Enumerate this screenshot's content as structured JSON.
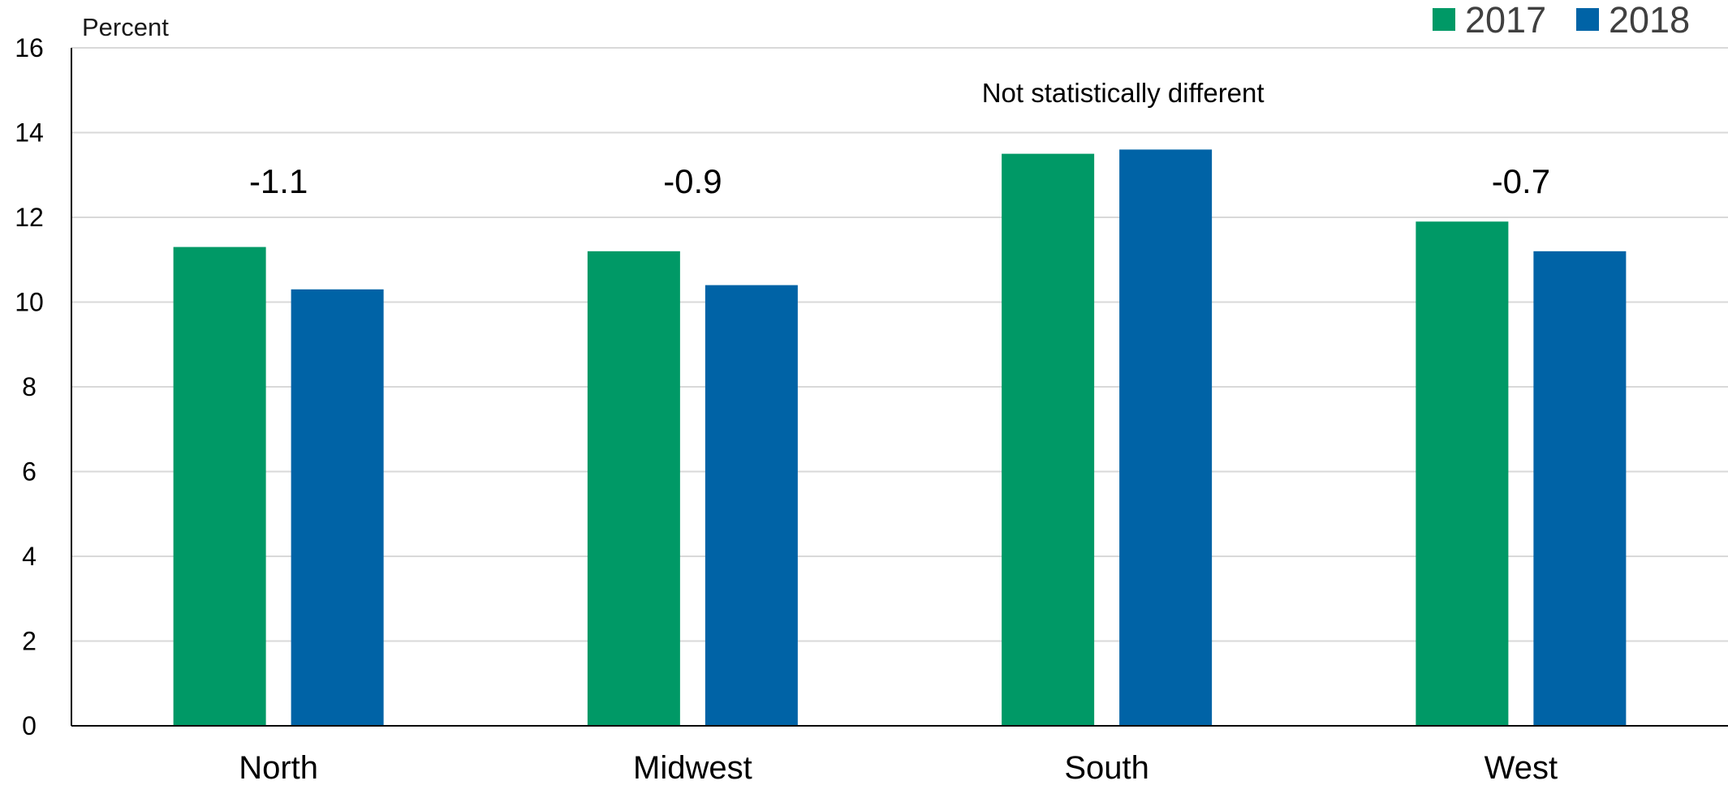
{
  "chart_data": {
    "type": "bar",
    "ylabel": "Percent",
    "ylim": [
      0,
      16
    ],
    "yticks": [
      0,
      2,
      4,
      6,
      8,
      10,
      12,
      14,
      16
    ],
    "grid": true,
    "legend_position": "top-right",
    "categories": [
      "North",
      "Midwest",
      "South",
      "West"
    ],
    "series": [
      {
        "name": "2017",
        "color": "#009966",
        "values": [
          11.3,
          11.2,
          13.5,
          11.9
        ]
      },
      {
        "name": "2018",
        "color": "#0063A6",
        "values": [
          10.3,
          10.4,
          13.6,
          11.2
        ]
      }
    ],
    "annotations": [
      "-1.1",
      "-0.9",
      "Not statistically different",
      "-0.7"
    ]
  }
}
